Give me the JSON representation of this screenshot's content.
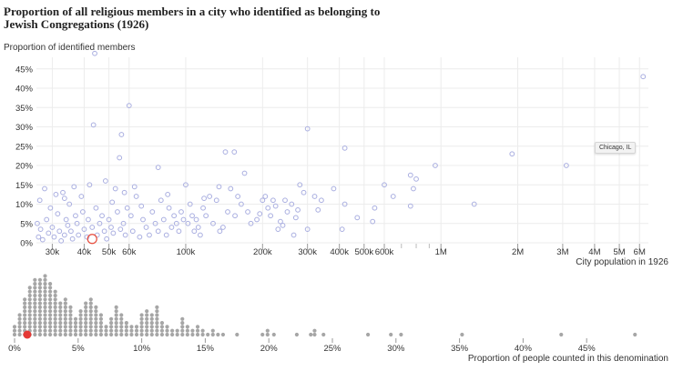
{
  "title": "Proportion of all religious members in a city who identified as belonging to Jewish Congregations (1926)",
  "tooltip": "Chicago, IL",
  "chart_data": [
    {
      "type": "scatter",
      "title": "Proportion of all religious members in a city who identified as belonging to Jewish Congregations (1926)",
      "ylabel": "Proportion of identified members",
      "xlabel": "City population in 1926",
      "xscale": "log",
      "xlim": [
        26000,
        6500000
      ],
      "ylim": [
        0,
        48
      ],
      "yticks": [
        0,
        5,
        10,
        15,
        20,
        25,
        30,
        35,
        40,
        45
      ],
      "ytick_labels": [
        "0%",
        "5%",
        "10%",
        "15%",
        "20%",
        "25%",
        "30%",
        "35%",
        "40%",
        "45%"
      ],
      "xticks": [
        30000,
        40000,
        50000,
        60000,
        100000,
        200000,
        300000,
        400000,
        500000,
        600000,
        1000000,
        2000000,
        3000000,
        4000000,
        5000000,
        6000000
      ],
      "xtick_labels": [
        "30k",
        "40k",
        "50k",
        "60k",
        "100k",
        "200k",
        "300k",
        "400k",
        "500k",
        "600k",
        "1M",
        "2M",
        "3M",
        "4M",
        "5M",
        "6M"
      ],
      "highlight": {
        "label": "Chicago, IL",
        "x": 3100000,
        "y": 20
      },
      "selected": {
        "x": 43000,
        "y": 1
      },
      "points": [
        [
          44000,
          49
        ],
        [
          43500,
          30.5
        ],
        [
          60000,
          35.5
        ],
        [
          56000,
          28
        ],
        [
          55000,
          22
        ],
        [
          78000,
          19.5
        ],
        [
          300000,
          29.5
        ],
        [
          420000,
          24.5
        ],
        [
          143000,
          23.5
        ],
        [
          155000,
          23.5
        ],
        [
          1900000,
          23
        ],
        [
          6200000,
          43
        ],
        [
          3100000,
          20
        ],
        [
          950000,
          20
        ],
        [
          800000,
          16.5
        ],
        [
          760000,
          17.5
        ],
        [
          780000,
          14
        ],
        [
          1350000,
          10
        ],
        [
          760000,
          9.5
        ],
        [
          650000,
          12
        ],
        [
          600000,
          15
        ],
        [
          550000,
          9
        ],
        [
          540000,
          5.5
        ],
        [
          470000,
          6.5
        ],
        [
          420000,
          10
        ],
        [
          410000,
          3.5
        ],
        [
          380000,
          14
        ],
        [
          340000,
          11
        ],
        [
          330000,
          8.5
        ],
        [
          320000,
          12
        ],
        [
          300000,
          3.5
        ],
        [
          290000,
          13
        ],
        [
          280000,
          15
        ],
        [
          270000,
          6.5
        ],
        [
          260000,
          10
        ],
        [
          250000,
          8
        ],
        [
          240000,
          4.5
        ],
        [
          230000,
          3.5
        ],
        [
          220000,
          11
        ],
        [
          210000,
          9
        ],
        [
          200000,
          11
        ],
        [
          195000,
          7.5
        ],
        [
          190000,
          6
        ],
        [
          180000,
          5
        ],
        [
          175000,
          8
        ],
        [
          170000,
          18
        ],
        [
          165000,
          10
        ],
        [
          160000,
          12
        ],
        [
          156000,
          7
        ],
        [
          150000,
          14
        ],
        [
          146000,
          8
        ],
        [
          140000,
          4
        ],
        [
          136000,
          3
        ],
        [
          132000,
          11
        ],
        [
          128000,
          5
        ],
        [
          124000,
          12
        ],
        [
          120000,
          7
        ],
        [
          117000,
          9
        ],
        [
          114000,
          2
        ],
        [
          112000,
          4
        ],
        [
          110000,
          6
        ],
        [
          108000,
          3
        ],
        [
          106000,
          7
        ],
        [
          104000,
          10
        ],
        [
          102000,
          5
        ],
        [
          100000,
          15
        ],
        [
          98000,
          6
        ],
        [
          96000,
          8
        ],
        [
          94000,
          3
        ],
        [
          92000,
          5
        ],
        [
          90000,
          7
        ],
        [
          88000,
          4
        ],
        [
          86000,
          9
        ],
        [
          84000,
          2
        ],
        [
          82000,
          6
        ],
        [
          80000,
          11
        ],
        [
          78000,
          3
        ],
        [
          76000,
          5
        ],
        [
          74000,
          8
        ],
        [
          72000,
          2
        ],
        [
          70000,
          4
        ],
        [
          68000,
          6
        ],
        [
          66000,
          1.5
        ],
        [
          64000,
          12
        ],
        [
          62000,
          3
        ],
        [
          61000,
          7
        ],
        [
          59000,
          9
        ],
        [
          58000,
          2
        ],
        [
          57000,
          5
        ],
        [
          55500,
          3.5
        ],
        [
          54000,
          8
        ],
        [
          53000,
          14
        ],
        [
          52000,
          2.5
        ],
        [
          51000,
          4
        ],
        [
          50000,
          6
        ],
        [
          49000,
          1
        ],
        [
          48000,
          3
        ],
        [
          47000,
          7
        ],
        [
          46000,
          5
        ],
        [
          45000,
          2
        ],
        [
          44500,
          9
        ],
        [
          43000,
          4
        ],
        [
          42000,
          15
        ],
        [
          41500,
          6
        ],
        [
          41000,
          1.5
        ],
        [
          40000,
          3.5
        ],
        [
          39500,
          8
        ],
        [
          39000,
          12
        ],
        [
          38000,
          2
        ],
        [
          37500,
          5
        ],
        [
          37000,
          7
        ],
        [
          36000,
          1
        ],
        [
          35500,
          3
        ],
        [
          35000,
          10
        ],
        [
          34500,
          4.5
        ],
        [
          34000,
          6
        ],
        [
          33500,
          2
        ],
        [
          33000,
          13
        ],
        [
          32500,
          0.5
        ],
        [
          32000,
          3
        ],
        [
          31500,
          7.5
        ],
        [
          31000,
          12.5
        ],
        [
          30500,
          1.5
        ],
        [
          30000,
          4
        ],
        [
          29500,
          9
        ],
        [
          29000,
          2.5
        ],
        [
          28500,
          6
        ],
        [
          28000,
          14
        ],
        [
          27500,
          0.8
        ],
        [
          27000,
          3.5
        ],
        [
          26800,
          11
        ],
        [
          26500,
          1.5
        ],
        [
          26200,
          5
        ],
        [
          33500,
          11.5
        ],
        [
          36500,
          14.5
        ],
        [
          48500,
          16
        ],
        [
          51500,
          10.5
        ],
        [
          57500,
          13
        ],
        [
          63000,
          14.5
        ],
        [
          67000,
          9.5
        ],
        [
          85000,
          12.5
        ],
        [
          118000,
          11.5
        ],
        [
          135000,
          14.5
        ],
        [
          205000,
          12
        ],
        [
          215000,
          7
        ],
        [
          225000,
          9.5
        ],
        [
          235000,
          5.5
        ],
        [
          245000,
          11
        ],
        [
          265000,
          2
        ],
        [
          275000,
          8.5
        ]
      ]
    },
    {
      "type": "scatter",
      "subtype": "beeswarm",
      "xlabel": "Proportion of people counted in this denomination",
      "xlim": [
        0,
        50
      ],
      "xticks": [
        0,
        5,
        10,
        15,
        20,
        25,
        30,
        35,
        40,
        45
      ],
      "xtick_labels": [
        "0%",
        "5%",
        "10%",
        "15%",
        "20%",
        "25%",
        "30%",
        "35%",
        "40%",
        "45%"
      ],
      "highlight_value": 1,
      "bins": [
        [
          0.0,
          3
        ],
        [
          0.4,
          6
        ],
        [
          0.8,
          10
        ],
        [
          1.2,
          13
        ],
        [
          1.6,
          15
        ],
        [
          2.0,
          15
        ],
        [
          2.4,
          16
        ],
        [
          2.8,
          14
        ],
        [
          3.2,
          12
        ],
        [
          3.6,
          9
        ],
        [
          4.0,
          10
        ],
        [
          4.4,
          8
        ],
        [
          4.8,
          5
        ],
        [
          5.2,
          7
        ],
        [
          5.6,
          9
        ],
        [
          6.0,
          10
        ],
        [
          6.4,
          8
        ],
        [
          6.8,
          6
        ],
        [
          7.2,
          3
        ],
        [
          7.6,
          5
        ],
        [
          8.0,
          8
        ],
        [
          8.4,
          6
        ],
        [
          8.8,
          4
        ],
        [
          9.2,
          3
        ],
        [
          9.6,
          3
        ],
        [
          10.0,
          6
        ],
        [
          10.4,
          7
        ],
        [
          10.8,
          6
        ],
        [
          11.2,
          8
        ],
        [
          11.6,
          4
        ],
        [
          12.0,
          3
        ],
        [
          12.4,
          2
        ],
        [
          12.8,
          2
        ],
        [
          13.2,
          5
        ],
        [
          13.6,
          3
        ],
        [
          14.0,
          2
        ],
        [
          14.4,
          3
        ],
        [
          14.8,
          2
        ],
        [
          15.2,
          1
        ],
        [
          15.6,
          2
        ],
        [
          16.0,
          1
        ],
        [
          16.4,
          1
        ],
        [
          17.5,
          1
        ],
        [
          19.5,
          1
        ],
        [
          19.9,
          2
        ],
        [
          20.4,
          1
        ],
        [
          22.2,
          1
        ],
        [
          23.3,
          1
        ],
        [
          23.6,
          2
        ],
        [
          24.3,
          1
        ],
        [
          27.8,
          1
        ],
        [
          29.6,
          1
        ],
        [
          30.4,
          1
        ],
        [
          35.2,
          1
        ],
        [
          43.0,
          1
        ],
        [
          48.8,
          1
        ]
      ]
    }
  ]
}
